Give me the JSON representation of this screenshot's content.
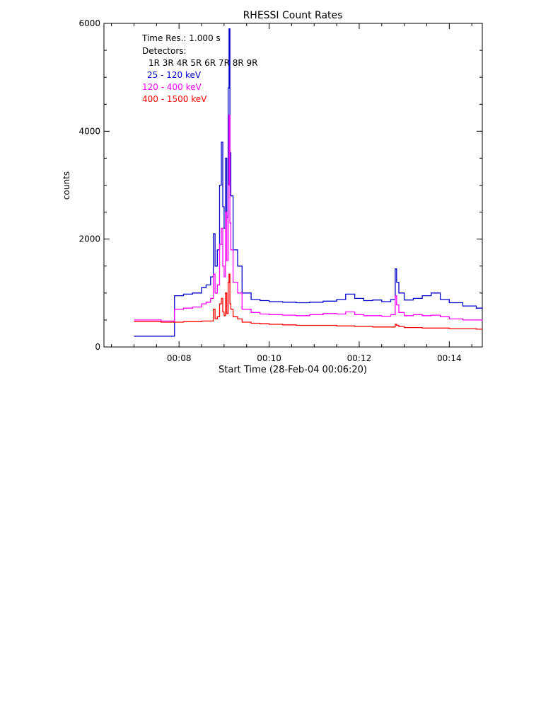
{
  "chart_data": {
    "type": "line",
    "title": "RHESSI Count Rates",
    "xlabel": "Start Time (28-Feb-04 00:06:20)",
    "ylabel": "counts",
    "x_unit": "minutes after 00:00 UT",
    "xlim": [
      6.333,
      14.733
    ],
    "ylim": [
      0,
      6000
    ],
    "x_ticks": [
      {
        "value": 8,
        "label": "00:08"
      },
      {
        "value": 10,
        "label": "00:10"
      },
      {
        "value": 12,
        "label": "00:12"
      },
      {
        "value": 14,
        "label": "00:14"
      }
    ],
    "y_ticks": [
      {
        "value": 0,
        "label": "0"
      },
      {
        "value": 2000,
        "label": "2000"
      },
      {
        "value": 4000,
        "label": "4000"
      },
      {
        "value": 6000,
        "label": "6000"
      }
    ],
    "grid": false,
    "legend_position": "top-left",
    "annotations": {
      "time_res": "Time Res.: 1.000 s",
      "detectors_label": "Detectors:",
      "detectors_list": "1R 3R 4R 5R 6R 7R 8R 9R"
    },
    "series": [
      {
        "name": "25 - 120 keV",
        "color": "#0000cc",
        "x": [
          7.0,
          7.3,
          7.6,
          7.88,
          7.9,
          8.1,
          8.3,
          8.5,
          8.6,
          8.7,
          8.76,
          8.8,
          8.85,
          8.9,
          8.94,
          8.97,
          9.0,
          9.03,
          9.06,
          9.09,
          9.11,
          9.13,
          9.15,
          9.2,
          9.3,
          9.4,
          9.6,
          9.8,
          10.0,
          10.3,
          10.6,
          10.9,
          11.2,
          11.5,
          11.7,
          11.9,
          12.1,
          12.3,
          12.5,
          12.7,
          12.8,
          12.83,
          12.88,
          13.0,
          13.2,
          13.4,
          13.6,
          13.8,
          14.0,
          14.3,
          14.6,
          14.733
        ],
        "y": [
          200,
          200,
          200,
          200,
          950,
          980,
          1000,
          1100,
          1150,
          1300,
          2100,
          1500,
          1800,
          3000,
          3800,
          2600,
          2200,
          3500,
          2400,
          4800,
          5900,
          3600,
          2800,
          1800,
          1500,
          1000,
          880,
          860,
          840,
          830,
          820,
          830,
          850,
          880,
          980,
          900,
          860,
          870,
          840,
          880,
          1450,
          1200,
          1000,
          870,
          900,
          950,
          1000,
          880,
          820,
          760,
          720,
          700
        ]
      },
      {
        "name": "120 - 400 keV",
        "color": "#ff00ff",
        "x": [
          7.0,
          7.3,
          7.6,
          7.88,
          7.9,
          8.1,
          8.3,
          8.5,
          8.6,
          8.7,
          8.76,
          8.8,
          8.85,
          8.9,
          8.94,
          8.97,
          9.0,
          9.03,
          9.06,
          9.09,
          9.11,
          9.13,
          9.15,
          9.2,
          9.3,
          9.4,
          9.6,
          9.8,
          10.0,
          10.3,
          10.6,
          10.9,
          11.2,
          11.5,
          11.7,
          11.9,
          12.1,
          12.3,
          12.5,
          12.7,
          12.8,
          12.83,
          12.88,
          13.0,
          13.2,
          13.4,
          13.6,
          13.8,
          14.0,
          14.3,
          14.6,
          14.733
        ],
        "y": [
          500,
          500,
          480,
          470,
          700,
          720,
          740,
          800,
          830,
          900,
          1350,
          1000,
          1150,
          1900,
          2200,
          1500,
          1300,
          2500,
          1600,
          3000,
          4300,
          2300,
          1800,
          1200,
          1000,
          700,
          640,
          610,
          600,
          590,
          580,
          600,
          620,
          610,
          650,
          600,
          580,
          580,
          570,
          600,
          950,
          780,
          640,
          580,
          600,
          580,
          590,
          560,
          520,
          500,
          500,
          480
        ]
      },
      {
        "name": "400 - 1500 keV",
        "color": "#ff0000",
        "x": [
          7.0,
          7.3,
          7.6,
          7.88,
          7.9,
          8.1,
          8.3,
          8.5,
          8.6,
          8.7,
          8.76,
          8.8,
          8.85,
          8.9,
          8.94,
          8.97,
          9.0,
          9.03,
          9.06,
          9.09,
          9.11,
          9.13,
          9.15,
          9.2,
          9.3,
          9.4,
          9.6,
          9.8,
          10.0,
          10.3,
          10.6,
          10.9,
          11.2,
          11.5,
          11.7,
          11.9,
          12.1,
          12.3,
          12.5,
          12.7,
          12.8,
          12.83,
          12.88,
          13.0,
          13.2,
          13.4,
          13.6,
          13.8,
          14.0,
          14.3,
          14.6,
          14.733
        ],
        "y": [
          470,
          470,
          460,
          460,
          460,
          470,
          470,
          480,
          480,
          480,
          700,
          520,
          560,
          800,
          900,
          650,
          580,
          1000,
          620,
          1200,
          1350,
          800,
          700,
          560,
          520,
          460,
          440,
          430,
          420,
          410,
          400,
          400,
          400,
          390,
          390,
          380,
          380,
          370,
          370,
          370,
          420,
          400,
          380,
          360,
          360,
          350,
          350,
          350,
          340,
          340,
          330,
          330
        ]
      }
    ]
  }
}
